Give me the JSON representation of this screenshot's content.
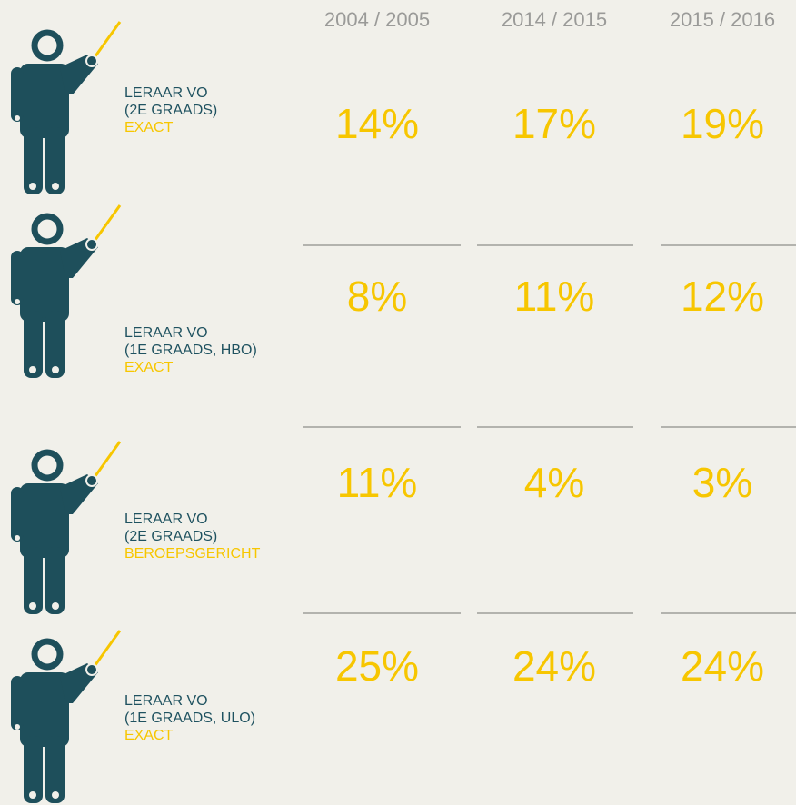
{
  "table": {
    "columns": [
      "2004 / 2005",
      "2014 / 2015",
      "2015 / 2016"
    ],
    "rows": [
      {
        "label": [
          "LERAAR VO",
          "(2E GRAADS)"
        ],
        "category": "EXACT",
        "values": [
          "14%",
          "17%",
          "19%"
        ]
      },
      {
        "label": [
          "LERAAR VO",
          "(1E GRAADS, HBO)"
        ],
        "category": "EXACT",
        "values": [
          "8%",
          "11%",
          "12%"
        ]
      },
      {
        "label": [
          "LERAAR VO",
          "(2E GRAADS)"
        ],
        "category": "BEROEPSGERICHT",
        "values": [
          "11%",
          "4%",
          "3%"
        ]
      },
      {
        "label": [
          "LERAAR VO",
          "(1E GRAADS, ULO)"
        ],
        "category": "EXACT",
        "values": [
          "25%",
          "24%",
          "24%"
        ]
      }
    ]
  }
}
